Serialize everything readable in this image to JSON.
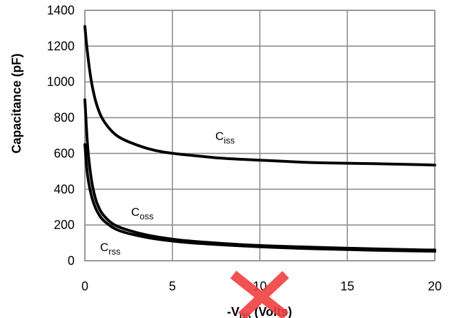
{
  "chart_data": {
    "type": "line",
    "xlabel": {
      "prefix": "-V",
      "sub": "DS",
      "suffix": " (Volts)"
    },
    "ylabel": "Capacitance (pF)",
    "xlim": [
      0,
      20
    ],
    "ylim": [
      0,
      1400
    ],
    "xticks": [
      0,
      5,
      10,
      15,
      20
    ],
    "yticks": [
      0,
      200,
      400,
      600,
      800,
      1000,
      1200,
      1400
    ],
    "grid": true,
    "series": [
      {
        "name": "Ciss",
        "label_main": "C",
        "label_sub": "iss",
        "x": [
          0,
          0.1,
          0.3,
          0.5,
          0.7,
          1.0,
          1.5,
          2.0,
          3.0,
          4.0,
          5.0,
          6.0,
          7.0,
          8.0,
          10.0,
          12.0,
          13.0,
          15.0,
          18.0,
          20.0
        ],
        "values": [
          1310,
          1200,
          1040,
          935,
          860,
          790,
          725,
          685,
          645,
          615,
          600,
          590,
          580,
          572,
          562,
          553,
          548,
          545,
          540,
          535
        ]
      },
      {
        "name": "Coss",
        "label_main": "C",
        "label_sub": "oss",
        "x": [
          0,
          0.1,
          0.2,
          0.4,
          0.6,
          0.8,
          1.0,
          1.5,
          2.0,
          3.0,
          4.0,
          5.0,
          6.0,
          8.0,
          10.0,
          12.0,
          15.0,
          18.0,
          20.0
        ],
        "values": [
          900,
          720,
          580,
          430,
          345,
          295,
          260,
          210,
          185,
          155,
          135,
          120,
          110,
          95,
          85,
          78,
          70,
          63,
          60
        ]
      },
      {
        "name": "Crss",
        "label_main": "C",
        "label_sub": "rss",
        "x": [
          0,
          0.1,
          0.2,
          0.4,
          0.6,
          0.8,
          1.0,
          1.5,
          2.0,
          3.0,
          4.0,
          5.0,
          6.0,
          8.0,
          10.0,
          12.0,
          15.0,
          18.0,
          20.0
        ],
        "values": [
          650,
          520,
          440,
          350,
          295,
          258,
          230,
          190,
          165,
          140,
          122,
          110,
          100,
          88,
          78,
          70,
          62,
          56,
          53
        ]
      }
    ]
  },
  "watermark": {
    "color": "#f04040"
  }
}
